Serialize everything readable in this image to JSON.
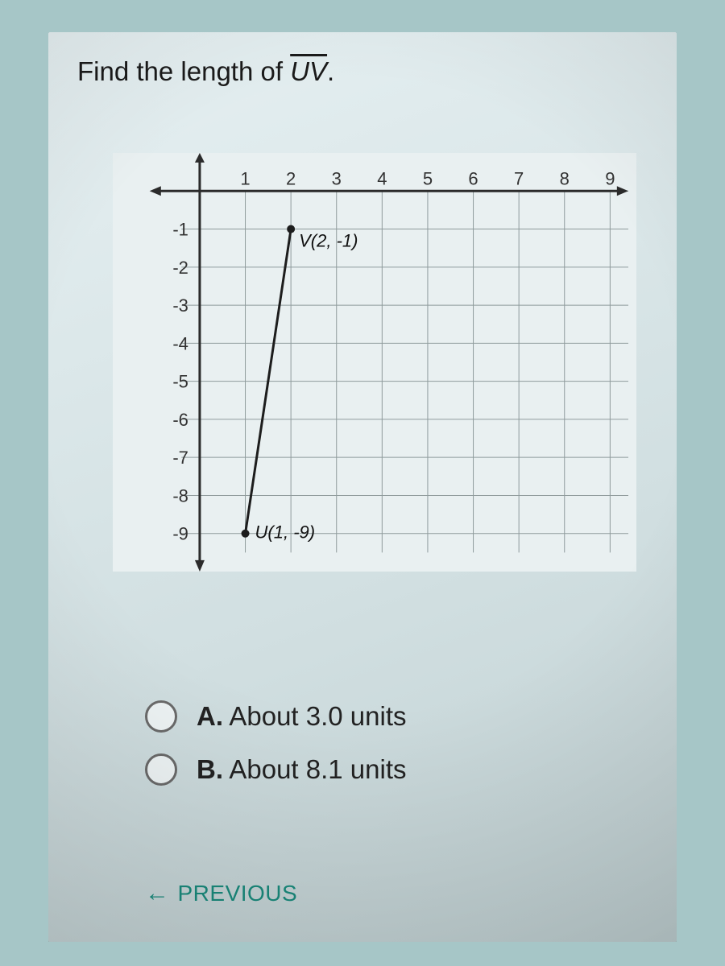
{
  "question": {
    "prefix": "Find the length of ",
    "segment": "UV",
    "suffix": "."
  },
  "chart": {
    "type": "line-segment-on-grid",
    "background_color": "#e9f0f1",
    "grid_color": "#8f9b9c",
    "axis_color": "#2b2b2b",
    "tick_font_size": 22,
    "tick_color": "#333333",
    "point_label_font_size": 22,
    "point_label_color": "#111111",
    "xlim": [
      -1.2,
      9.4
    ],
    "ylim": [
      -10.0,
      1.0
    ],
    "x_ticks": [
      1,
      2,
      3,
      4,
      5,
      6,
      7,
      8,
      9
    ],
    "y_ticks": [
      -1,
      -2,
      -3,
      -4,
      -5,
      -6,
      -7,
      -8,
      -9
    ],
    "segment_color": "#1d1d1d",
    "segment_width": 3,
    "point_fill": "#1d1d1d",
    "point_radius": 5,
    "points": {
      "V": {
        "x": 2,
        "y": -1,
        "label": "V(2, -1)"
      },
      "U": {
        "x": 1,
        "y": -9,
        "label": "U(1, -9)"
      }
    }
  },
  "options": [
    {
      "letter": "A.",
      "text": "About 3.0 units"
    },
    {
      "letter": "B.",
      "text": "About 8.1 units"
    }
  ],
  "nav": {
    "previous_label": "PREVIOUS"
  }
}
